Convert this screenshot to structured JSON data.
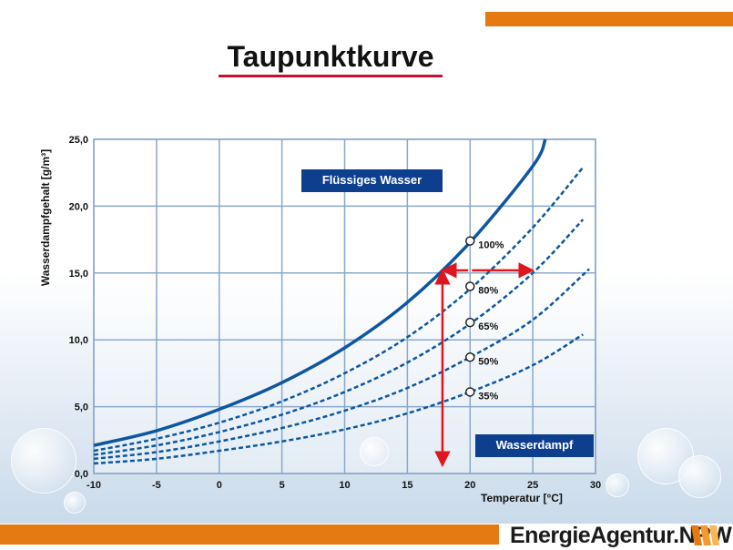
{
  "page": {
    "title": "Taupunktkurve",
    "logo_text": "EnergieAgentur.NRW"
  },
  "colors": {
    "accent_orange": "#e57a12",
    "curve_blue": "#0d56a0",
    "box_blue": "#0d3f8e",
    "arrow_red": "#e0161e",
    "grid": "#8aa8cc"
  },
  "icons": [
    "logo-stripes-icon"
  ],
  "chart_data": {
    "type": "line",
    "xlabel": "Temperatur [°C]",
    "ylabel": "Wasserdampfgehalt [g/m³]",
    "xlim": [
      -10,
      30
    ],
    "ylim": [
      0,
      25
    ],
    "x_ticks": [
      "-10",
      "-5",
      "0",
      "5",
      "10",
      "15",
      "20",
      "25",
      "30"
    ],
    "y_ticks": [
      "0,0",
      "5,0",
      "10,0",
      "15,0",
      "20,0",
      "25,0"
    ],
    "grid": true,
    "region_labels": [
      "Flüssiges Wasser",
      "Wasserdampf"
    ],
    "series": [
      {
        "name": "100%",
        "style": "solid",
        "x": [
          -10,
          -5,
          0,
          5,
          10,
          15,
          20,
          25,
          26
        ],
        "y": [
          2.1,
          3.2,
          4.8,
          6.8,
          9.4,
          12.8,
          17.3,
          23.0,
          25.0
        ]
      },
      {
        "name": "80%",
        "style": "dashed",
        "x": [
          -10,
          -5,
          0,
          5,
          10,
          15,
          20,
          25,
          29
        ],
        "y": [
          1.7,
          2.6,
          3.8,
          5.4,
          7.5,
          10.2,
          13.8,
          18.4,
          22.9
        ]
      },
      {
        "name": "65%",
        "style": "dashed",
        "x": [
          -10,
          -5,
          0,
          5,
          10,
          15,
          20,
          25,
          29
        ],
        "y": [
          1.4,
          2.1,
          3.1,
          4.4,
          6.1,
          8.3,
          11.2,
          15.0,
          19.0
        ]
      },
      {
        "name": "50%",
        "style": "dashed",
        "x": [
          -10,
          -5,
          0,
          5,
          10,
          15,
          20,
          25,
          29.5
        ],
        "y": [
          1.1,
          1.6,
          2.4,
          3.4,
          4.7,
          6.4,
          8.7,
          11.5,
          15.3
        ]
      },
      {
        "name": "35%",
        "style": "dashed",
        "x": [
          -10,
          -5,
          0,
          5,
          10,
          15,
          20,
          25,
          29
        ],
        "y": [
          0.75,
          1.1,
          1.7,
          2.4,
          3.3,
          4.5,
          6.1,
          8.1,
          10.4
        ]
      }
    ],
    "markers": [
      {
        "x": 20,
        "y": 17.4,
        "label": "100%"
      },
      {
        "x": 20,
        "y": 14.0,
        "label": "80%"
      },
      {
        "x": 20,
        "y": 11.3,
        "label": "65%"
      },
      {
        "x": 20,
        "y": 8.7,
        "label": "50%"
      },
      {
        "x": 20,
        "y": 6.1,
        "label": "35%"
      }
    ],
    "annotations": {
      "dew_point_arrow_x": 17.8,
      "dew_point_arrow_y_top": 15.2,
      "horizontal_arrow_y": 15.2,
      "horizontal_arrow_x": [
        17.8,
        20,
        25
      ]
    }
  }
}
